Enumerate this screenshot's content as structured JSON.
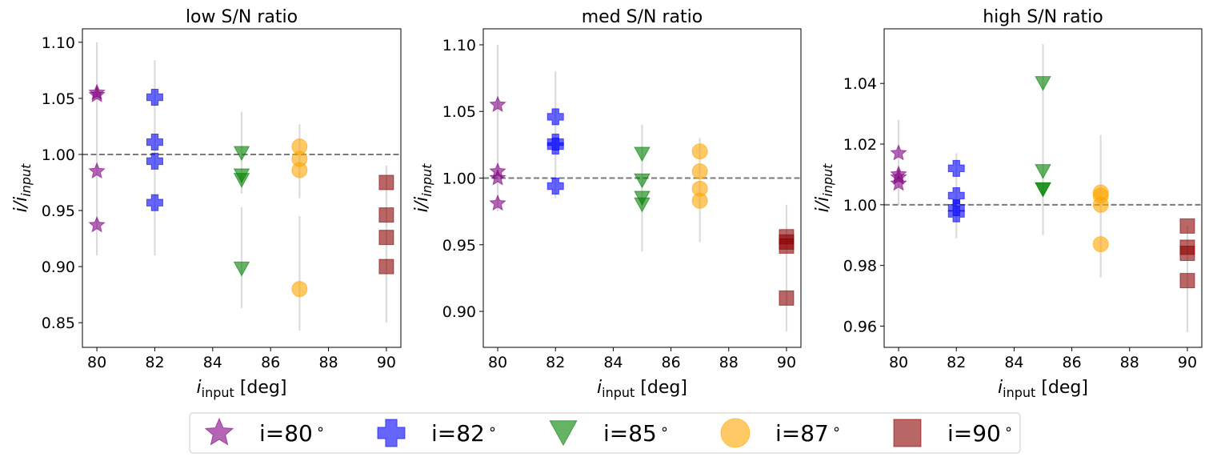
{
  "chart_data": {
    "type": "scatter",
    "shared": {
      "xlabel_main": "i",
      "xlabel_sub": "input",
      "xlabel_unit": " [deg]",
      "ylabel_main": "i",
      "ylabel_sep": "/",
      "ylabel_main2": "i",
      "ylabel_sub": "input",
      "x_ticks": [
        "80",
        "82",
        "84",
        "86",
        "88",
        "90"
      ],
      "reference_line": 1.0
    },
    "legend": [
      {
        "label": "i=80$^\\circ$",
        "text": "i=80",
        "deg": "∘",
        "marker": "star",
        "color": "#800080"
      },
      {
        "label": "i=82",
        "text": "i=82",
        "deg": "∘",
        "marker": "plus",
        "color": "#0000ff"
      },
      {
        "label": "i=85",
        "text": "i=85",
        "deg": "∘",
        "marker": "triangle",
        "color": "#008000"
      },
      {
        "label": "i=87",
        "text": "i=87",
        "deg": "∘",
        "marker": "circle",
        "color": "#ffa500"
      },
      {
        "label": "i=90",
        "text": "i=90",
        "deg": "∘",
        "marker": "square",
        "color": "#8b0000"
      }
    ],
    "panels": [
      {
        "title": "low S/N ratio",
        "ylim": [
          0.828,
          1.112
        ],
        "y_ticks": [
          "0.85",
          "0.90",
          "0.95",
          "1.00",
          "1.05",
          "1.10"
        ],
        "errorbars": [
          {
            "x": 80,
            "lo": 0.91,
            "hi": 1.1
          },
          {
            "x": 82,
            "lo": 0.91,
            "hi": 1.084
          },
          {
            "x": 85,
            "lo": 0.863,
            "hi": 0.953
          },
          {
            "x": 85,
            "lo": 0.965,
            "hi": 1.038
          },
          {
            "x": 87,
            "lo": 0.843,
            "hi": 0.945
          },
          {
            "x": 87,
            "lo": 0.961,
            "hi": 1.027
          },
          {
            "x": 90,
            "lo": 0.85,
            "hi": 0.99
          }
        ],
        "series": [
          {
            "name": "i=80",
            "x": [
              80,
              80,
              80,
              80
            ],
            "y": [
              1.055,
              1.053,
              0.985,
              0.937
            ]
          },
          {
            "name": "i=82",
            "x": [
              82,
              82,
              82,
              82
            ],
            "y": [
              1.051,
              1.011,
              0.994,
              0.957
            ]
          },
          {
            "name": "i=85",
            "x": [
              85,
              85,
              85,
              85
            ],
            "y": [
              1.001,
              0.981,
              0.977,
              0.898
            ]
          },
          {
            "name": "i=87",
            "x": [
              87,
              87,
              87,
              87
            ],
            "y": [
              1.007,
              0.996,
              0.986,
              0.88
            ]
          },
          {
            "name": "i=90",
            "x": [
              90,
              90,
              90,
              90
            ],
            "y": [
              0.975,
              0.946,
              0.926,
              0.9
            ]
          }
        ]
      },
      {
        "title": "med S/N ratio",
        "ylim": [
          0.873,
          1.112
        ],
        "y_ticks": [
          "0.90",
          "0.95",
          "1.00",
          "1.05",
          "1.10"
        ],
        "errorbars": [
          {
            "x": 80,
            "lo": 0.975,
            "hi": 1.1
          },
          {
            "x": 82,
            "lo": 0.985,
            "hi": 1.08
          },
          {
            "x": 85,
            "lo": 0.945,
            "hi": 1.04
          },
          {
            "x": 87,
            "lo": 0.952,
            "hi": 1.03
          },
          {
            "x": 90,
            "lo": 0.885,
            "hi": 0.98
          }
        ],
        "series": [
          {
            "name": "i=80",
            "x": [
              80,
              80,
              80,
              80
            ],
            "y": [
              1.055,
              1.005,
              1.0,
              0.981
            ]
          },
          {
            "name": "i=82",
            "x": [
              82,
              82,
              82,
              82
            ],
            "y": [
              1.046,
              1.027,
              1.024,
              0.994
            ]
          },
          {
            "name": "i=85",
            "x": [
              85,
              85,
              85,
              85
            ],
            "y": [
              1.018,
              0.998,
              0.985,
              0.98
            ]
          },
          {
            "name": "i=87",
            "x": [
              87,
              87,
              87,
              87
            ],
            "y": [
              1.02,
              1.005,
              0.992,
              0.983
            ]
          },
          {
            "name": "i=90",
            "x": [
              90,
              90,
              90,
              90
            ],
            "y": [
              0.956,
              0.952,
              0.949,
              0.91
            ]
          }
        ]
      },
      {
        "title": "high S/N ratio",
        "ylim": [
          0.953,
          1.058
        ],
        "y_ticks": [
          "0.96",
          "0.98",
          "1.00",
          "1.02",
          "1.04"
        ],
        "errorbars": [
          {
            "x": 80,
            "lo": 1.0,
            "hi": 1.028
          },
          {
            "x": 82,
            "lo": 0.989,
            "hi": 1.017
          },
          {
            "x": 85,
            "lo": 0.99,
            "hi": 1.053
          },
          {
            "x": 87,
            "lo": 0.976,
            "hi": 1.023
          },
          {
            "x": 90,
            "lo": 0.958,
            "hi": 0.993
          }
        ],
        "series": [
          {
            "name": "i=80",
            "x": [
              80,
              80,
              80,
              80
            ],
            "y": [
              1.017,
              1.01,
              1.009,
              1.007
            ]
          },
          {
            "name": "i=82",
            "x": [
              82,
              82,
              82,
              82
            ],
            "y": [
              1.012,
              1.003,
              0.999,
              0.997
            ]
          },
          {
            "name": "i=85",
            "x": [
              85,
              85,
              85,
              85
            ],
            "y": [
              1.04,
              1.011,
              1.005,
              1.005
            ]
          },
          {
            "name": "i=87",
            "x": [
              87,
              87,
              87,
              87
            ],
            "y": [
              1.004,
              1.003,
              1.0,
              0.987
            ]
          },
          {
            "name": "i=90",
            "x": [
              90,
              90,
              90,
              90
            ],
            "y": [
              0.993,
              0.986,
              0.984,
              0.975
            ]
          }
        ]
      }
    ]
  }
}
